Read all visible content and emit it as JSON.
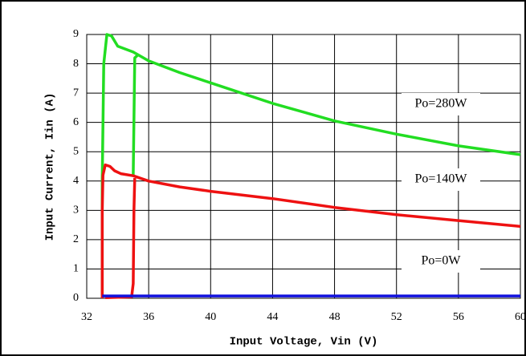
{
  "chart_data": {
    "type": "line",
    "x_label": "Input Voltage, Vin (V)",
    "y_label": "Input Current, Iin (A)",
    "xlim": [
      32,
      60
    ],
    "xticks": [
      32,
      36,
      40,
      44,
      48,
      52,
      56,
      60
    ],
    "ylim": [
      0,
      9
    ],
    "yticks": [
      0,
      1,
      2,
      3,
      4,
      5,
      6,
      7,
      8,
      9
    ],
    "grid": true,
    "annotations": [
      "Po=280W",
      "Po=140W",
      "Po=0W"
    ],
    "series": [
      {
        "color": "#22dd22",
        "x": [
          33.0,
          33.0,
          33.1,
          33.3,
          33.6,
          34,
          35,
          36,
          38,
          40,
          44,
          48,
          52,
          56,
          60,
          null,
          35.0,
          35.1,
          35.3
        ],
        "values": [
          0.1,
          4,
          8.0,
          9.0,
          8.95,
          8.6,
          8.4,
          8.1,
          7.7,
          7.35,
          6.65,
          6.05,
          5.6,
          5.2,
          4.9,
          null,
          4.2,
          8.2,
          8.3
        ]
      },
      {
        "color": "#ee1111",
        "x": [
          33.0,
          33.0,
          33.05,
          33.2,
          33.5,
          33.8,
          34.2,
          35,
          36,
          38,
          40,
          44,
          48,
          52,
          56,
          60,
          null,
          33.2,
          34.9,
          35.0,
          35.05,
          35.1
        ],
        "values": [
          0,
          3,
          4.2,
          4.55,
          4.5,
          4.35,
          4.25,
          4.18,
          4.0,
          3.8,
          3.65,
          3.4,
          3.1,
          2.85,
          2.65,
          2.45,
          null,
          0.02,
          0.05,
          0.5,
          3.0,
          4.1
        ]
      },
      {
        "color": "#1111dd",
        "x": [
          33,
          60
        ],
        "values": [
          0.08,
          0.08
        ]
      }
    ]
  }
}
